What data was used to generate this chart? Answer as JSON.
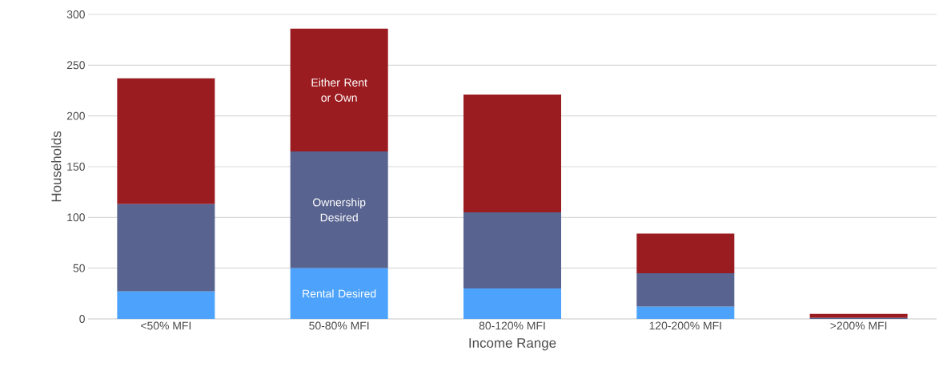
{
  "chart_data": {
    "type": "bar",
    "stacked": true,
    "xlabel": "Income Range",
    "ylabel": "Households",
    "categories": [
      "<50% MFI",
      "50-80% MFI",
      "80-120% MFI",
      "120-200% MFI",
      ">200% MFI"
    ],
    "series": [
      {
        "name": "Rental Desired",
        "color": "#4da3fb",
        "values": [
          27,
          50,
          30,
          12,
          0
        ]
      },
      {
        "name": "Ownership Desired",
        "color": "#58638f",
        "values": [
          86,
          115,
          75,
          33,
          1
        ]
      },
      {
        "name": "Either Rent or Own",
        "color": "#9b1c20",
        "values": [
          124,
          121,
          116,
          39,
          4
        ]
      }
    ],
    "ylim": [
      0,
      300
    ],
    "yticks": [
      0,
      50,
      100,
      150,
      200,
      250,
      300
    ],
    "grid": "y"
  }
}
